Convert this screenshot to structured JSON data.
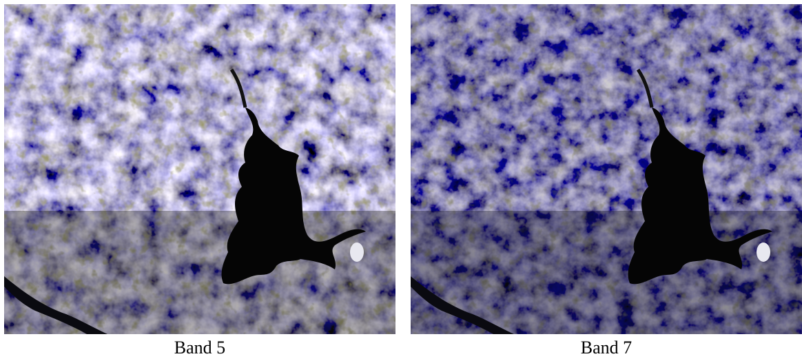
{
  "panels": [
    {
      "caption": "Band 5"
    },
    {
      "caption": "Band 7"
    }
  ]
}
